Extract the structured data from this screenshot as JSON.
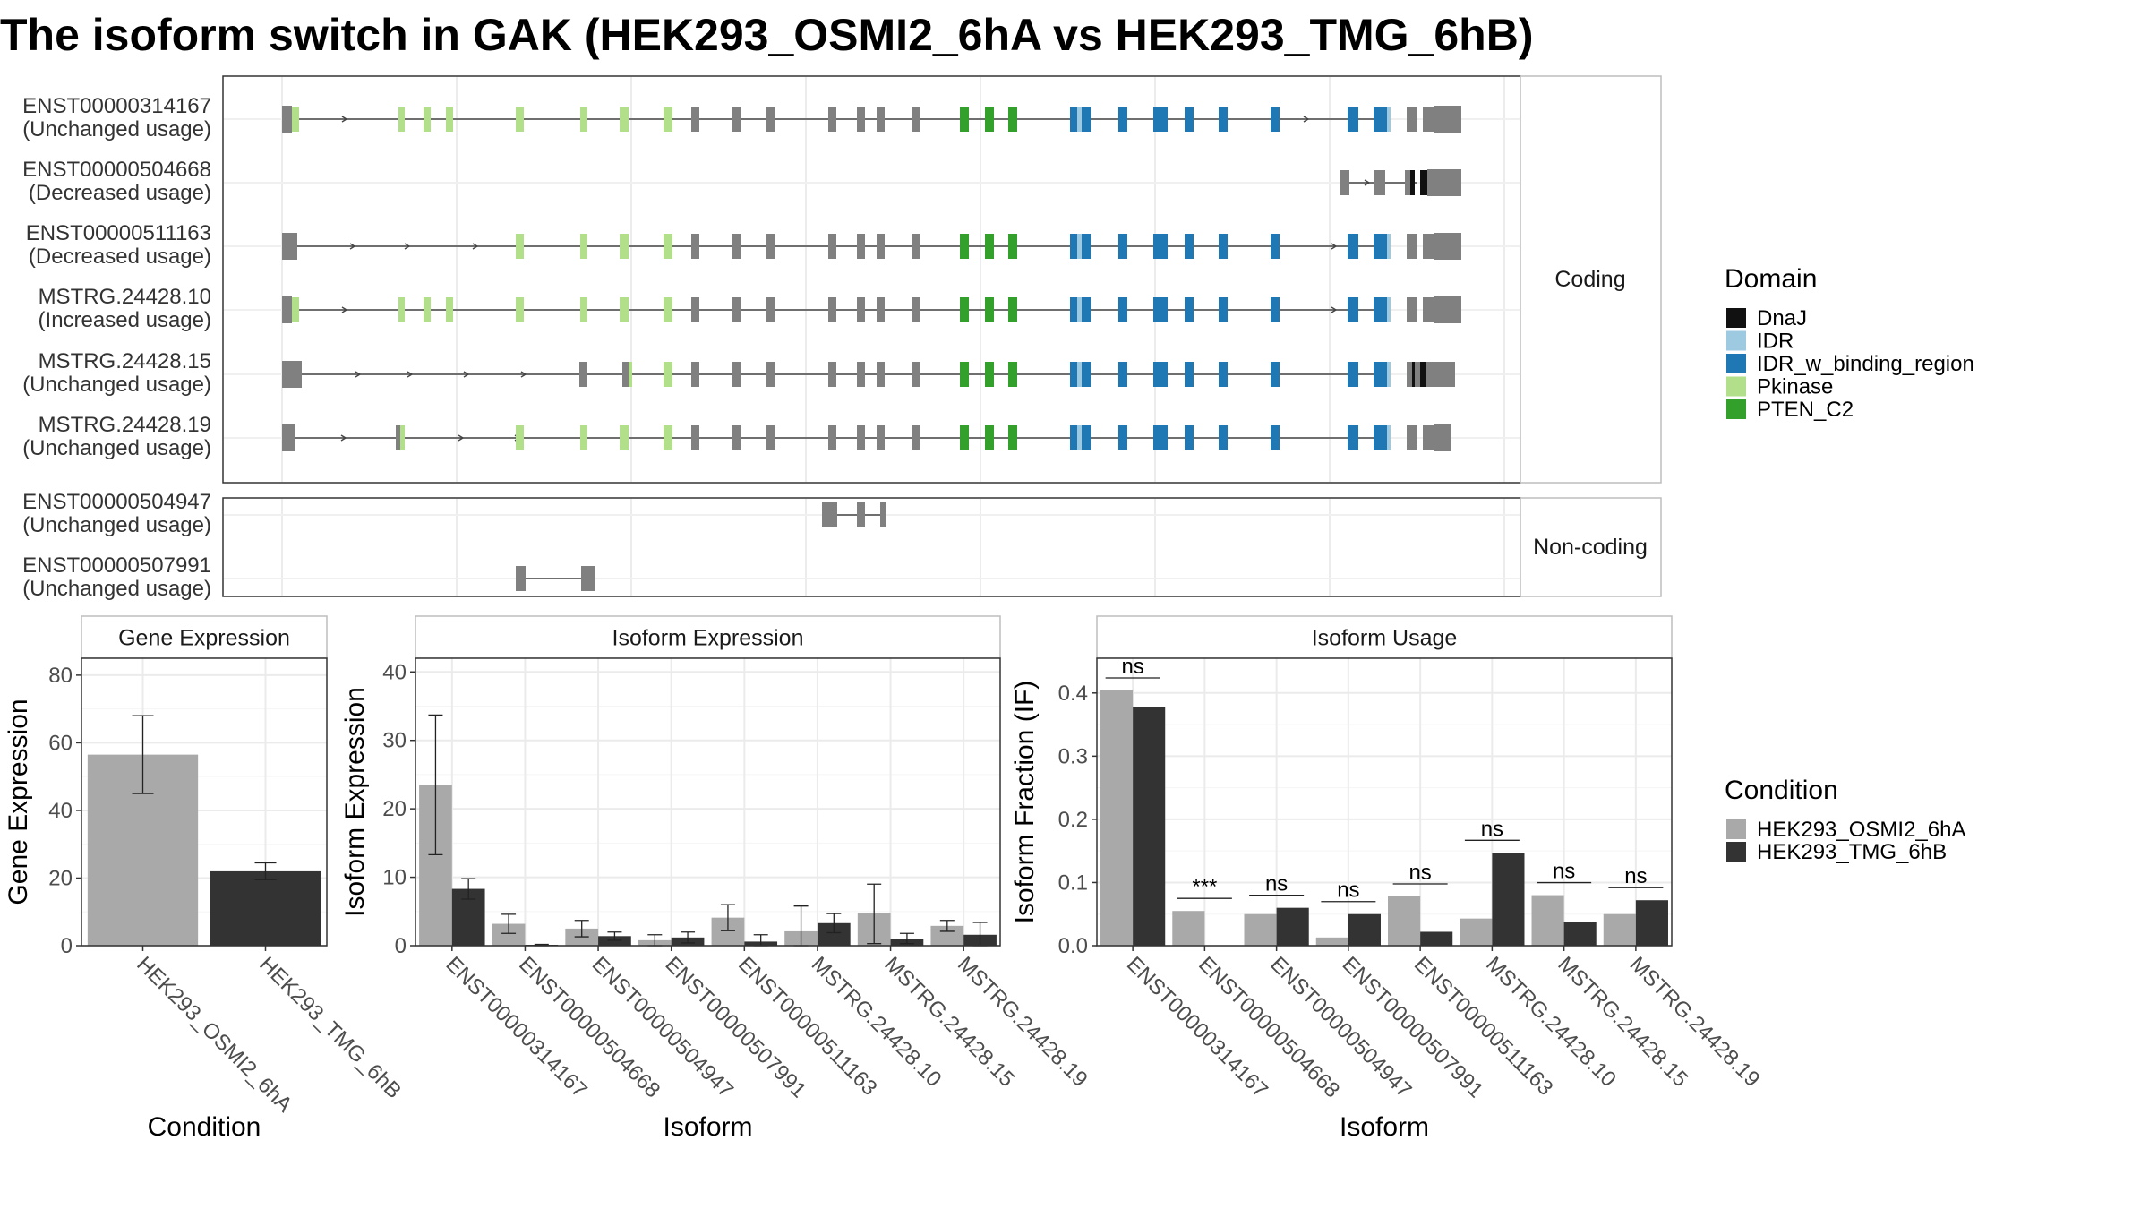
{
  "title": "The isoform switch in GAK (HEK293_OSMI2_6hA vs HEK293_TMG_6hB)",
  "colors": {
    "DnaJ": "#111111",
    "IDR": "#9ecae1",
    "IDR_w_binding_region": "#1f78b4",
    "Pkinase": "#b2df8a",
    "PTEN_C2": "#33a02c",
    "exon": "#808080",
    "cond_a": "#a9a9a9",
    "cond_b": "#333333"
  },
  "structure": {
    "panels": [
      "Coding",
      "Non-coding"
    ],
    "transcripts": [
      {
        "id": "ENST00000314167",
        "usage": "(Unchanged usage)",
        "panel": "Coding"
      },
      {
        "id": "ENST00000504668",
        "usage": "(Decreased usage)",
        "panel": "Coding"
      },
      {
        "id": "ENST00000511163",
        "usage": "(Decreased usage)",
        "panel": "Coding"
      },
      {
        "id": "MSTRG.24428.10",
        "usage": "(Increased usage)",
        "panel": "Coding"
      },
      {
        "id": "MSTRG.24428.15",
        "usage": "(Unchanged usage)",
        "panel": "Coding"
      },
      {
        "id": "MSTRG.24428.19",
        "usage": "(Unchanged usage)",
        "panel": "Coding"
      },
      {
        "id": "ENST00000504947",
        "usage": "(Unchanged usage)",
        "panel": "Non-coding"
      },
      {
        "id": "ENST00000507991",
        "usage": "(Unchanged usage)",
        "panel": "Non-coding"
      }
    ],
    "domain_legend": {
      "title": "Domain",
      "entries": [
        "DnaJ",
        "IDR",
        "IDR_w_binding_region",
        "Pkinase",
        "PTEN_C2"
      ]
    }
  },
  "chart_data": [
    {
      "type": "bar",
      "panel_title": "Gene Expression",
      "xlabel": "Condition",
      "ylabel": "Gene Expression",
      "ylim": [
        0,
        85
      ],
      "yticks": [
        0,
        20,
        40,
        60,
        80
      ],
      "categories": [
        "HEK293_OSMI2_6hA",
        "HEK293_TMG_6hB"
      ],
      "values": [
        56.5,
        22
      ],
      "error_low": [
        45,
        19.5
      ],
      "error_high": [
        68,
        24.5
      ]
    },
    {
      "type": "bar",
      "panel_title": "Isoform Expression",
      "xlabel": "Isoform",
      "ylabel": "Isoform Expression",
      "ylim": [
        0,
        42
      ],
      "yticks": [
        0,
        10,
        20,
        30,
        40
      ],
      "categories": [
        "ENST00000314167",
        "ENST00000504668",
        "ENST00000504947",
        "ENST00000507991",
        "ENST00000511163",
        "MSTRG.24428.10",
        "MSTRG.24428.15",
        "MSTRG.24428.19"
      ],
      "series": [
        {
          "name": "HEK293_OSMI2_6hA",
          "values": [
            23.5,
            3.2,
            2.5,
            0.8,
            4.1,
            2.1,
            4.8,
            2.9
          ],
          "error_low": [
            13.3,
            1.8,
            1.3,
            0,
            2.2,
            0,
            0.3,
            2.1
          ],
          "error_high": [
            33.7,
            4.6,
            3.7,
            1.6,
            6,
            5.8,
            9,
            3.7
          ]
        },
        {
          "name": "HEK293_TMG_6hB",
          "values": [
            8.3,
            0.1,
            1.4,
            1.2,
            0.6,
            3.3,
            1,
            1.6
          ],
          "error_low": [
            6.8,
            0,
            0.8,
            0.4,
            0,
            1.9,
            0.3,
            0
          ],
          "error_high": [
            9.8,
            0.2,
            2,
            2,
            1.6,
            4.7,
            1.8,
            3.4
          ]
        }
      ]
    },
    {
      "type": "bar",
      "panel_title": "Isoform Usage",
      "xlabel": "Isoform",
      "ylabel": "Isoform Fraction (IF)",
      "ylim": [
        0,
        0.455
      ],
      "yticks": [
        0,
        0.1,
        0.2,
        0.3,
        0.4
      ],
      "ytick_labels": [
        "0.0",
        "0.1",
        "0.2",
        "0.3",
        "0.4"
      ],
      "categories": [
        "ENST00000314167",
        "ENST00000504668",
        "ENST00000504947",
        "ENST00000507991",
        "ENST00000511163",
        "MSTRG.24428.10",
        "MSTRG.24428.15",
        "MSTRG.24428.19"
      ],
      "series": [
        {
          "name": "HEK293_OSMI2_6hA",
          "values": [
            0.404,
            0.055,
            0.05,
            0.013,
            0.078,
            0.043,
            0.08,
            0.05
          ]
        },
        {
          "name": "HEK293_TMG_6hB",
          "values": [
            0.378,
            0,
            0.06,
            0.05,
            0.022,
            0.147,
            0.037,
            0.072
          ]
        }
      ],
      "significance": [
        "ns",
        "***",
        "ns",
        "ns",
        "ns",
        "ns",
        "ns",
        "ns"
      ]
    }
  ],
  "condition_legend": {
    "title": "Condition",
    "entries": [
      "HEK293_OSMI2_6hA",
      "HEK293_TMG_6hB"
    ]
  }
}
